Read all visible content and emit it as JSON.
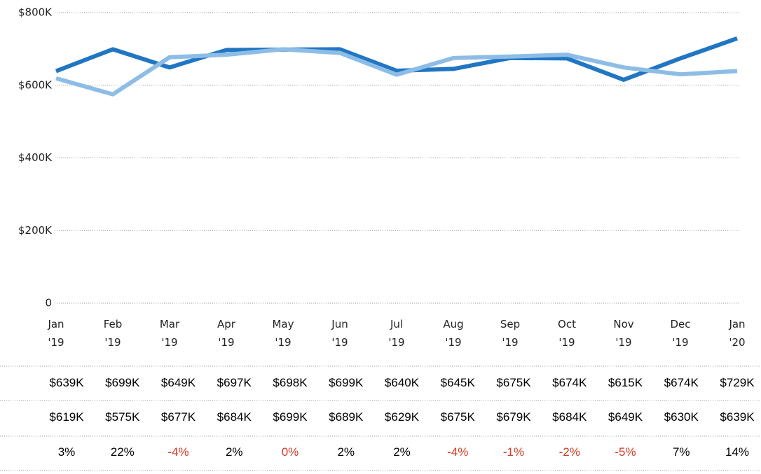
{
  "chart_data": {
    "type": "line",
    "categories": [
      "Jan '19",
      "Feb '19",
      "Mar '19",
      "Apr '19",
      "May '19",
      "Jun '19",
      "Jul '19",
      "Aug '19",
      "Sep '19",
      "Oct '19",
      "Nov '19",
      "Dec '19",
      "Jan '20"
    ],
    "series": [
      {
        "color": "#2176c3",
        "values": [
          639000,
          699000,
          649000,
          697000,
          698000,
          699000,
          640000,
          645000,
          675000,
          674000,
          615000,
          674000,
          729000
        ],
        "value_labels": [
          "$639K",
          "$699K",
          "$649K",
          "$697K",
          "$698K",
          "$699K",
          "$640K",
          "$645K",
          "$675K",
          "$674K",
          "$615K",
          "$674K",
          "$729K"
        ]
      },
      {
        "color": "#8dbde6",
        "values": [
          619000,
          575000,
          677000,
          684000,
          699000,
          689000,
          629000,
          675000,
          679000,
          684000,
          649000,
          630000,
          639000
        ],
        "value_labels": [
          "$619K",
          "$575K",
          "$677K",
          "$684K",
          "$699K",
          "$689K",
          "$629K",
          "$675K",
          "$679K",
          "$684K",
          "$649K",
          "$630K",
          "$639K"
        ]
      }
    ],
    "variance": {
      "values": [
        3,
        22,
        -4,
        2,
        0,
        2,
        2,
        -4,
        -1,
        -2,
        -5,
        7,
        14
      ],
      "value_labels": [
        "3%",
        "22%",
        "-4%",
        "2%",
        "0%",
        "2%",
        "2%",
        "-4%",
        "-1%",
        "-2%",
        "-5%",
        "7%",
        "14%"
      ],
      "value_colors": [
        "#000000",
        "#000000",
        "#d13c26",
        "#000000",
        "#d13c26",
        "#000000",
        "#000000",
        "#d13c26",
        "#d13c26",
        "#d13c26",
        "#d13c26",
        "#000000",
        "#000000"
      ]
    },
    "ylim": [
      0,
      800000
    ],
    "yticks": [
      0,
      {
        "value": 200000,
        "label": "$200K"
      },
      {
        "value": 400000,
        "label": "$400K"
      },
      {
        "value": 600000,
        "label": "$600K"
      },
      {
        "value": 800000,
        "label": "$800K"
      }
    ],
    "grid": true
  }
}
